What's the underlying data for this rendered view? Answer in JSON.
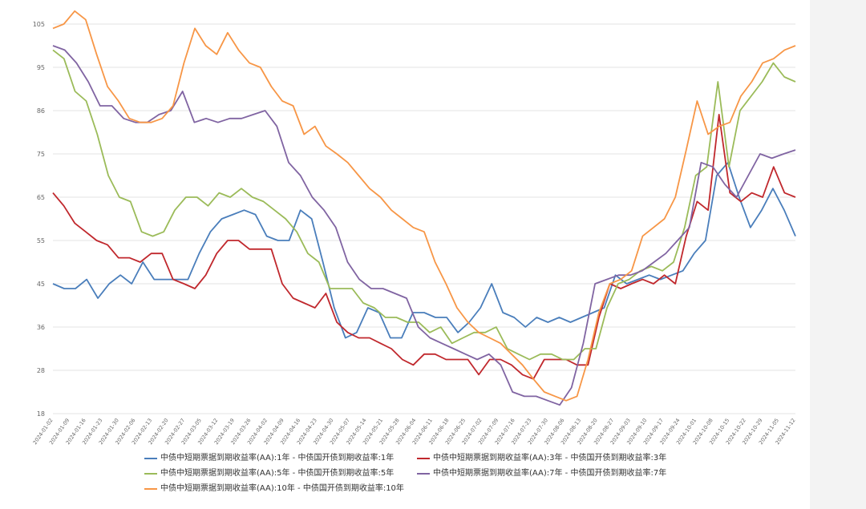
{
  "chart_data": {
    "type": "line",
    "title": "",
    "xlabel": "",
    "ylabel": "",
    "ylim": [
      18,
      105
    ],
    "y_ticks": [
      18,
      28,
      36,
      45,
      55,
      65,
      75,
      86,
      95,
      105
    ],
    "grid": true,
    "legend_position": "bottom",
    "x_tick_labels": [
      "2024-01-02",
      "2024-01-09",
      "2024-01-16",
      "2024-01-23",
      "2024-01-30",
      "2024-02-06",
      "2024-02-13",
      "2024-02-20",
      "2024-02-27",
      "2024-03-05",
      "2024-03-12",
      "2024-03-19",
      "2024-03-26",
      "2024-04-02",
      "2024-04-09",
      "2024-04-16",
      "2024-04-23",
      "2024-04-30",
      "2024-05-07",
      "2024-05-14",
      "2024-05-21",
      "2024-05-28",
      "2024-06-04",
      "2024-06-11",
      "2024-06-18",
      "2024-06-25",
      "2024-07-02",
      "2024-07-09",
      "2024-07-16",
      "2024-07-23",
      "2024-07-30",
      "2024-08-06",
      "2024-08-13",
      "2024-08-20",
      "2024-08-27",
      "2024-09-03",
      "2024-09-10",
      "2024-09-17",
      "2024-09-24",
      "2024-10-01",
      "2024-10-08",
      "2024-10-15",
      "2024-10-22",
      "2024-10-29",
      "2024-11-05",
      "2024-11-12"
    ],
    "series": [
      {
        "name": "中债中短期票据到期收益率(AA):1年 - 中债国开债到期收益率:1年",
        "color": "#4a7ebb",
        "values": [
          45,
          44,
          44,
          46,
          42,
          45,
          47,
          45,
          50,
          46,
          46,
          46,
          46,
          52,
          57,
          60,
          61,
          62,
          61,
          56,
          55,
          55,
          62,
          60,
          50,
          40,
          34,
          35,
          40,
          39,
          34,
          34,
          39,
          39,
          38,
          38,
          35,
          37,
          40,
          45,
          39,
          38,
          36,
          38,
          37,
          38,
          37,
          38,
          39,
          40,
          47,
          45,
          46,
          47,
          46,
          47,
          48,
          52,
          55,
          70,
          73,
          65,
          58,
          62,
          67,
          62,
          56
        ]
      },
      {
        "name": "中债中短期票据到期收益率(AA):3年 - 中债国开债到期收益率:3年",
        "color": "#c0282d",
        "values": [
          66,
          63,
          59,
          57,
          55,
          54,
          51,
          51,
          50,
          52,
          52,
          46,
          45,
          44,
          47,
          52,
          55,
          55,
          53,
          53,
          53,
          45,
          42,
          41,
          40,
          43,
          37,
          35,
          34,
          34,
          33,
          32,
          30,
          29,
          31,
          31,
          30,
          30,
          30,
          27,
          30,
          30,
          29,
          27,
          26,
          30,
          30,
          30,
          29,
          29,
          38,
          45,
          44,
          45,
          46,
          45,
          47,
          45,
          56,
          64,
          62,
          85,
          66,
          64,
          66,
          65,
          72,
          66,
          65
        ]
      },
      {
        "name": "中债中短期票据到期收益率(AA):5年 - 中债国开债到期收益率:5年",
        "color": "#9bbb59",
        "values": [
          99,
          97,
          90,
          88,
          80,
          70,
          65,
          64,
          57,
          56,
          57,
          62,
          65,
          65,
          63,
          66,
          65,
          67,
          65,
          64,
          62,
          60,
          57,
          52,
          50,
          44,
          44,
          44,
          41,
          40,
          38,
          38,
          37,
          37,
          35,
          36,
          33,
          34,
          35,
          35,
          36,
          32,
          31,
          30,
          31,
          31,
          30,
          30,
          32,
          32,
          40,
          45,
          46,
          48,
          49,
          48,
          50,
          58,
          70,
          72,
          92,
          72,
          86,
          89,
          92,
          96,
          93,
          92
        ]
      },
      {
        "name": "中债中短期票据到期收益率(AA):7年 - 中债国开债到期收益率:7年",
        "color": "#8064a2",
        "values": [
          100,
          99,
          96,
          92,
          87,
          87,
          84,
          83,
          83,
          85,
          86,
          90,
          83,
          84,
          83,
          84,
          84,
          85,
          86,
          82,
          73,
          70,
          65,
          62,
          58,
          50,
          46,
          44,
          44,
          43,
          42,
          36,
          34,
          33,
          32,
          31,
          30,
          31,
          29,
          23,
          22,
          22,
          21,
          20,
          24,
          33,
          45,
          46,
          47,
          47,
          48,
          50,
          52,
          55,
          58,
          73,
          72,
          68,
          65,
          70,
          75,
          74,
          75,
          76
        ]
      },
      {
        "name": "中债中短期票据到期收益率(AA):10年 - 中债国开债到期收益率:10年",
        "color": "#f79646",
        "values": [
          104,
          105,
          108,
          106,
          98,
          91,
          88,
          84,
          83,
          83,
          84,
          87,
          96,
          104,
          100,
          98,
          103,
          99,
          96,
          95,
          91,
          88,
          87,
          80,
          82,
          77,
          75,
          73,
          70,
          67,
          65,
          62,
          60,
          58,
          57,
          50,
          45,
          40,
          37,
          35,
          34,
          33,
          31,
          29,
          26,
          23,
          22,
          21,
          22,
          30,
          39,
          45,
          46,
          48,
          56,
          58,
          60,
          65,
          76,
          88,
          80,
          82,
          83,
          89,
          92,
          96,
          97,
          99,
          100
        ]
      }
    ]
  },
  "legend": [
    {
      "label": "中债中短期票据到期收益率(AA):1年 - 中债国开债到期收益率:1年",
      "color": "#4a7ebb"
    },
    {
      "label": "中债中短期票据到期收益率(AA):3年 - 中债国开债到期收益率:3年",
      "color": "#c0282d"
    },
    {
      "label": "中债中短期票据到期收益率(AA):5年 - 中债国开债到期收益率:5年",
      "color": "#9bbb59"
    },
    {
      "label": "中债中短期票据到期收益率(AA):7年 - 中债国开债到期收益率:7年",
      "color": "#8064a2"
    },
    {
      "label": "中债中短期票据到期收益率(AA):10年 - 中债国开债到期收益率:10年",
      "color": "#f79646"
    }
  ]
}
